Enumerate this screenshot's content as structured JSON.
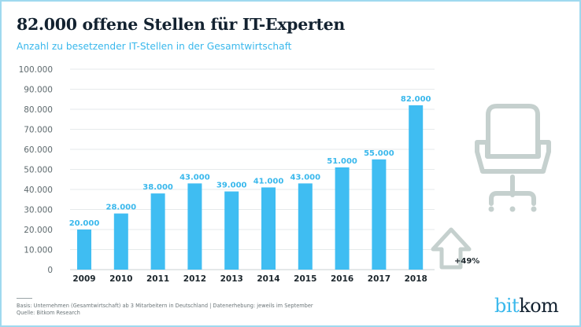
{
  "title": "82.000 offene Stellen für IT-Experten",
  "subtitle": "Anzahl zu besetzender IT-Stellen in der Gesamtwirtschaft",
  "colors": {
    "bar": "#3fbdf2",
    "label": "#3ab8ec",
    "grid": "#e6eaeb",
    "icon": "#c5d0ce",
    "frame": "#9fd9ef"
  },
  "chart_data": {
    "type": "bar",
    "title": "82.000 offene Stellen für IT-Experten",
    "subtitle": "Anzahl zu besetzender IT-Stellen in der Gesamtwirtschaft",
    "xlabel": "",
    "ylabel": "",
    "categories": [
      "2009",
      "2010",
      "2011",
      "2012",
      "2013",
      "2014",
      "2015",
      "2016",
      "2017",
      "2018"
    ],
    "values": [
      20000,
      28000,
      38000,
      43000,
      39000,
      41000,
      43000,
      51000,
      55000,
      82000
    ],
    "value_labels": [
      "20.000",
      "28.000",
      "38.000",
      "43.000",
      "39.000",
      "41.000",
      "43.000",
      "51.000",
      "55.000",
      "82.000"
    ],
    "ylim": [
      0,
      100000
    ],
    "yticks": [
      0,
      10000,
      20000,
      30000,
      40000,
      50000,
      60000,
      70000,
      80000,
      90000,
      100000
    ],
    "ytick_labels": [
      "0",
      "10.000",
      "20.000",
      "30.000",
      "40.000",
      "50.000",
      "60.000",
      "70.000",
      "80.000",
      "90.000",
      "100.000"
    ],
    "grid": true,
    "legend": "none",
    "annotations": [
      {
        "text": "+49%",
        "icon": "arrow-up-icon",
        "position": "right of 2018"
      }
    ]
  },
  "annotation": {
    "growth_label": "+49%"
  },
  "decoration": {
    "icon": "office-chair-icon"
  },
  "footnote": {
    "basis": "Basis: Unternehmen (Gesamtwirtschaft) ab 3 Mitarbeitern in Deutschland | Datenerhebung: jeweils im September",
    "source": "Quelle: Bitkom Research"
  },
  "logo": {
    "part1": "bit",
    "part2": "kom"
  }
}
